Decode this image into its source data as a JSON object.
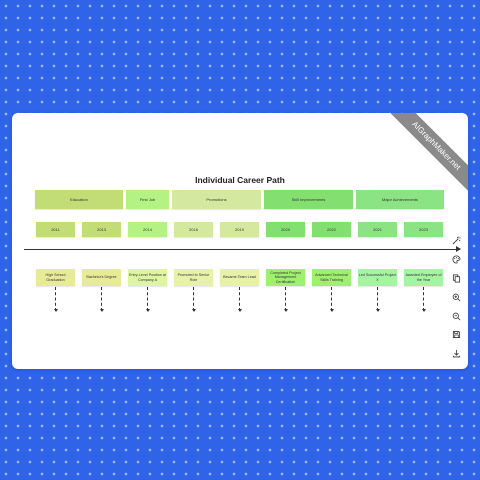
{
  "watermark": "AIGraphMaker.net",
  "diagram": {
    "title": "Individual Career Path",
    "categories": [
      {
        "label": "Education",
        "color": "#c2dd76"
      },
      {
        "label": "First Job",
        "color": "#b4f383"
      },
      {
        "label": "Promotions",
        "color": "#d4e99f"
      },
      {
        "label": "Skill Improvements",
        "color": "#82df70"
      },
      {
        "label": "Major Achievements",
        "color": "#8ce384"
      }
    ],
    "years": [
      {
        "label": "2011",
        "color": "#c2dd76"
      },
      {
        "label": "2013",
        "color": "#c2dd76"
      },
      {
        "label": "2014",
        "color": "#b4f383"
      },
      {
        "label": "2016",
        "color": "#d4e99f"
      },
      {
        "label": "2019",
        "color": "#d4e99f"
      },
      {
        "label": "2020",
        "color": "#82df70"
      },
      {
        "label": "2022",
        "color": "#82df70"
      },
      {
        "label": "2021",
        "color": "#8ce384"
      },
      {
        "label": "2023",
        "color": "#8ce384"
      }
    ],
    "events": [
      {
        "label": "High School Graduation",
        "color": "#e7ea97"
      },
      {
        "label": "Bachelor's Degree",
        "color": "#e7ea97"
      },
      {
        "label": "Entry-Level Position at Company A",
        "color": "#def5a2"
      },
      {
        "label": "Promoted to Senior Role",
        "color": "#e7f1a9"
      },
      {
        "label": "Became Team Lead",
        "color": "#e7f1a9"
      },
      {
        "label": "Completed Project Management Certification",
        "color": "#9ef06e"
      },
      {
        "label": "Advanced Technical Skills Training",
        "color": "#9ef06e"
      },
      {
        "label": "Led Successful Project X",
        "color": "#a6f4a3"
      },
      {
        "label": "Awarded Employee of the Year",
        "color": "#a6f4a3"
      }
    ]
  },
  "toolbar": {
    "icons": [
      "magic-wand-icon",
      "palette-icon",
      "copy-icon",
      "zoom-in-icon",
      "zoom-out-icon",
      "save-icon",
      "download-icon"
    ]
  }
}
